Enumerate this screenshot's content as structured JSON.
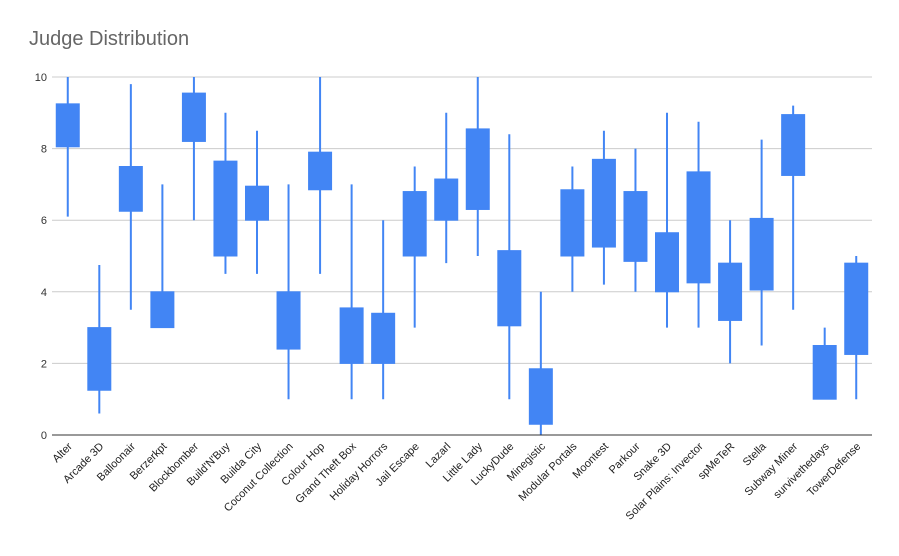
{
  "chart_data": {
    "type": "candlestick",
    "title": "Judge Distribution",
    "xlabel": "",
    "ylabel": "",
    "ylim": [
      0,
      10
    ],
    "yticks": [
      0,
      2,
      4,
      6,
      8,
      10
    ],
    "grid": true,
    "legend": "none",
    "color": "#4285f4",
    "categories": [
      "Alter",
      "Arcade 3D",
      "Balloonair",
      "Berzerkpt",
      "Blockbomber",
      "Build'N'Buy",
      "Builda City",
      "Coconut Collection",
      "Colour Hop",
      "Grand Theft Box",
      "Holiday Horrors",
      "Jail Escape",
      "Lazarl",
      "Little Lady",
      "LuckyDude",
      "Minegistic",
      "Modular Portals",
      "Moontest",
      "Parkour",
      "Snake 3D",
      "Solar Plains: Invector",
      "spMeTeR",
      "Stella",
      "Subway Miner",
      "survivethedays",
      "TowerDefense"
    ],
    "series": [
      {
        "low": [
          6.1,
          0.6,
          3.5,
          3.0,
          6.0,
          4.5,
          4.5,
          1.0,
          4.5,
          1.0,
          1.0,
          3.0,
          4.8,
          5.0,
          1.0,
          0.0,
          4.0,
          4.2,
          4.0,
          3.0,
          3.0,
          2.0,
          2.5,
          3.5,
          1.0,
          1.0
        ],
        "open": [
          8.05,
          1.25,
          6.25,
          3.0,
          8.2,
          5.0,
          6.0,
          2.4,
          6.85,
          2.0,
          2.0,
          5.0,
          6.0,
          6.3,
          3.05,
          0.3,
          5.0,
          5.25,
          4.85,
          4.0,
          4.25,
          3.2,
          4.05,
          7.25,
          1.0,
          2.25
        ],
        "close": [
          9.25,
          3.0,
          7.5,
          4.0,
          9.55,
          7.65,
          6.95,
          4.0,
          7.9,
          3.55,
          3.4,
          6.8,
          7.15,
          8.55,
          5.15,
          1.85,
          6.85,
          7.7,
          6.8,
          5.65,
          7.35,
          4.8,
          6.05,
          8.95,
          2.5,
          4.8
        ],
        "high": [
          10.0,
          4.75,
          9.8,
          7.0,
          10.0,
          9.0,
          8.5,
          7.0,
          10.0,
          7.0,
          6.0,
          7.5,
          9.0,
          10.0,
          8.4,
          4.0,
          7.5,
          8.5,
          8.0,
          9.0,
          8.75,
          6.0,
          8.25,
          9.2,
          3.0,
          5.0
        ]
      }
    ]
  }
}
